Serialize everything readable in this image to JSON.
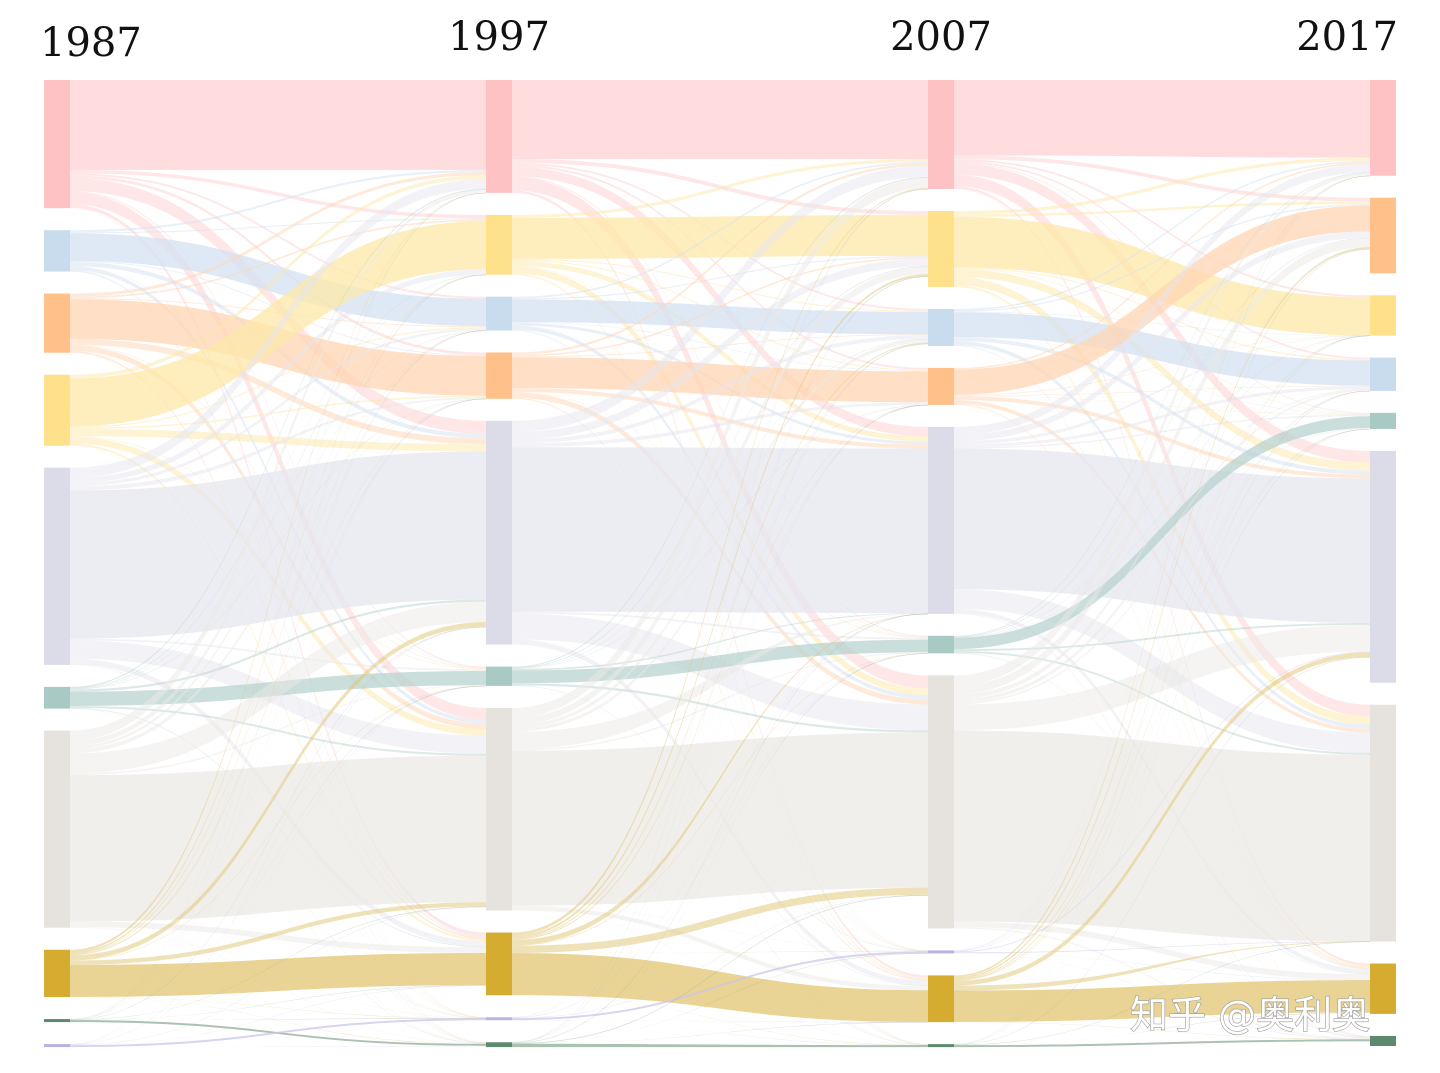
{
  "watermark": "知乎 @奥利奥",
  "chart_data": {
    "type": "sankey",
    "title": "",
    "stages": [
      "1987",
      "1997",
      "2007",
      "2017"
    ],
    "categories": [
      {
        "id": "c1",
        "color": "#ffc2c4",
        "link_color": "#ffd0d2"
      },
      {
        "id": "c2",
        "color": "#c9dcee",
        "link_color": "#d4e2f1"
      },
      {
        "id": "c3",
        "color": "#ffc08a",
        "link_color": "#ffd6b3"
      },
      {
        "id": "c4",
        "color": "#ffe18c",
        "link_color": "#fde8a8"
      },
      {
        "id": "c5",
        "color": "#dcdce8",
        "link_color": "#e6e6ef"
      },
      {
        "id": "c6",
        "color": "#a9c9c4",
        "link_color": "#b8d3cf"
      },
      {
        "id": "c7",
        "color": "#e6e2de",
        "link_color": "#ece9e6"
      },
      {
        "id": "c8",
        "color": "#d6ac30",
        "link_color": "#e2c672"
      },
      {
        "id": "c9",
        "color": "#5d8a6e",
        "link_color": "#8fae98"
      },
      {
        "id": "c10",
        "color": "#b8b3e0",
        "link_color": "#cac6ea"
      }
    ],
    "node_order": [
      [
        "c1",
        "c2",
        "c3",
        "c4",
        "c5",
        "c6",
        "c7",
        "c8",
        "c9",
        "c10"
      ],
      [
        "c1",
        "c4",
        "c2",
        "c3",
        "c5",
        "c6",
        "c7",
        "c8",
        "c10",
        "c9"
      ],
      [
        "c1",
        "c4",
        "c2",
        "c3",
        "c5",
        "c6",
        "c7",
        "c10",
        "c8",
        "c9"
      ],
      [
        "c1",
        "c3",
        "c4",
        "c2",
        "c6",
        "c5",
        "c7",
        "c8",
        "c9"
      ]
    ],
    "node_values": [
      {
        "c1": 130,
        "c2": 42,
        "c3": 60,
        "c4": 72,
        "c5": 200,
        "c6": 22,
        "c7": 200,
        "c8": 48,
        "c9": 3,
        "c10": 2
      },
      {
        "c1": 117,
        "c4": 62,
        "c2": 35,
        "c3": 48,
        "c5": 232,
        "c6": 20,
        "c7": 210,
        "c8": 65,
        "c10": 2,
        "c9": 5
      },
      {
        "c1": 112,
        "c4": 78,
        "c2": 38,
        "c3": 38,
        "c5": 192,
        "c6": 18,
        "c7": 260,
        "c10": 2,
        "c8": 48,
        "c9": 3
      },
      {
        "c1": 95,
        "c3": 75,
        "c4": 40,
        "c2": 33,
        "c6": 16,
        "c5": 230,
        "c7": 235,
        "c8": 50,
        "c9": 10
      }
    ]
  }
}
